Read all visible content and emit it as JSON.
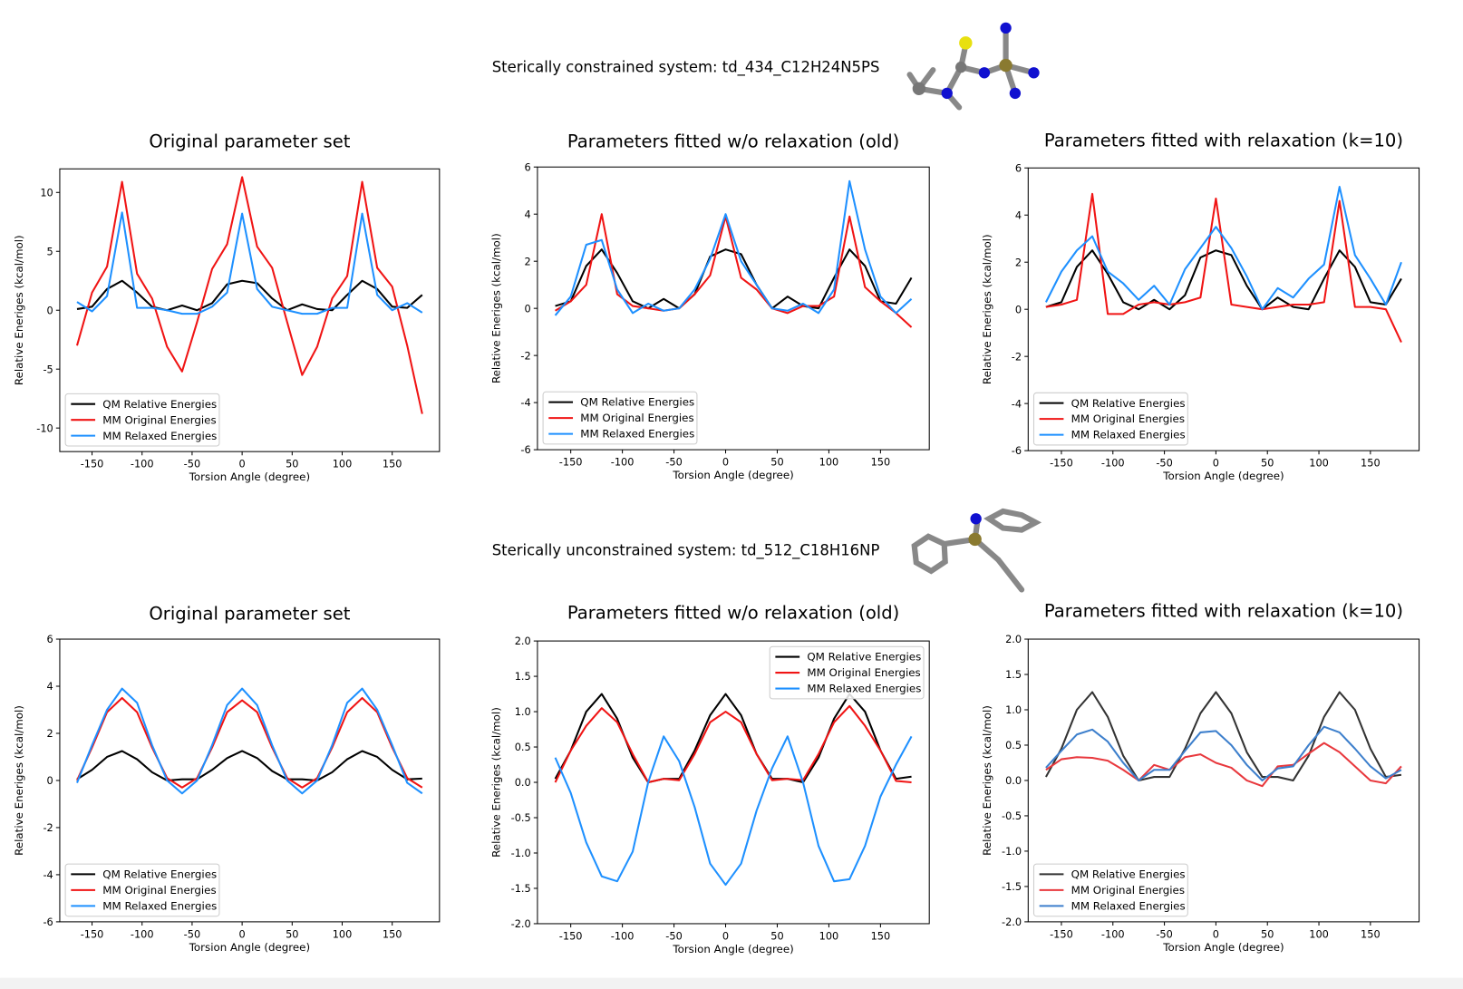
{
  "captions": [
    "Sterically constrained system: td_434_C12H24N5PS",
    "Sterically unconstrained system: td_512_C18H16NP"
  ],
  "chart_data": [
    {
      "type": "line",
      "title": "Original parameter set",
      "x_label": "Torsion Angle (degree)",
      "y_label": "Relative Eneriges (kcal/mol)",
      "x": [
        -165,
        -150,
        -135,
        -120,
        -105,
        -90,
        -75,
        -60,
        -45,
        -30,
        -15,
        0,
        15,
        30,
        45,
        60,
        75,
        90,
        105,
        120,
        135,
        150,
        165,
        180
      ],
      "xlim": [
        -182.25,
        197.25
      ],
      "xticks": [
        -150,
        -100,
        -50,
        0,
        50,
        100,
        150
      ],
      "ylim": [
        -12,
        12
      ],
      "yticks": [
        -10,
        -5,
        0,
        5,
        10
      ],
      "legend": "lower left",
      "series": [
        {
          "name": "QM Relative Energies",
          "color": "#000000",
          "values": [
            0.1,
            0.3,
            1.8,
            2.5,
            1.5,
            0.3,
            0.0,
            0.4,
            0.0,
            0.6,
            2.2,
            2.5,
            2.3,
            1.0,
            0.0,
            0.5,
            0.1,
            0.0,
            1.3,
            2.5,
            1.8,
            0.3,
            0.2,
            1.3
          ]
        },
        {
          "name": "MM Original Energies",
          "color": "#f01414",
          "values": [
            -3.0,
            1.5,
            3.7,
            10.9,
            3.1,
            1.0,
            -3.1,
            -5.2,
            -1.0,
            3.5,
            5.6,
            11.3,
            5.4,
            3.6,
            -1.0,
            -5.5,
            -3.1,
            1.0,
            2.9,
            10.9,
            3.6,
            2.0,
            -3.0,
            -8.8
          ]
        },
        {
          "name": "MM Relaxed Energies",
          "color": "#1e90ff",
          "values": [
            0.7,
            -0.1,
            1.2,
            8.3,
            0.2,
            0.2,
            0.0,
            -0.3,
            -0.3,
            0.3,
            1.5,
            8.2,
            1.8,
            0.3,
            0.0,
            -0.3,
            -0.3,
            0.2,
            0.2,
            8.2,
            1.3,
            0.0,
            0.6,
            -0.2
          ]
        }
      ]
    },
    {
      "type": "line",
      "title": "Parameters fitted w/o relaxation (old)",
      "x_label": "Torsion Angle (degree)",
      "y_label": "Relative Eneriges (kcal/mol)",
      "x": [
        -165,
        -150,
        -135,
        -120,
        -105,
        -90,
        -75,
        -60,
        -45,
        -30,
        -15,
        0,
        15,
        30,
        45,
        60,
        75,
        90,
        105,
        120,
        135,
        150,
        165,
        180
      ],
      "xlim": [
        -182.25,
        197.25
      ],
      "xticks": [
        -150,
        -100,
        -50,
        0,
        50,
        100,
        150
      ],
      "ylim": [
        -6,
        6
      ],
      "yticks": [
        -6,
        -4,
        -2,
        0,
        2,
        4,
        6
      ],
      "legend": "lower left",
      "series": [
        {
          "name": "QM Relative Energies",
          "color": "#000000",
          "values": [
            0.1,
            0.3,
            1.8,
            2.5,
            1.5,
            0.3,
            0.0,
            0.4,
            0.0,
            0.6,
            2.2,
            2.5,
            2.3,
            1.0,
            0.0,
            0.5,
            0.1,
            0.0,
            1.3,
            2.5,
            1.8,
            0.3,
            0.2,
            1.3
          ]
        },
        {
          "name": "MM Original Energies",
          "color": "#f01414",
          "values": [
            -0.1,
            0.3,
            1.0,
            4.0,
            0.6,
            0.1,
            0.0,
            -0.1,
            0.0,
            0.6,
            1.4,
            3.9,
            1.3,
            0.8,
            0.0,
            -0.2,
            0.1,
            0.1,
            0.5,
            3.9,
            0.9,
            0.3,
            -0.2,
            -0.8
          ]
        },
        {
          "name": "MM Relaxed Energies",
          "color": "#1e90ff",
          "values": [
            -0.3,
            0.5,
            2.7,
            2.9,
            0.8,
            -0.2,
            0.2,
            -0.1,
            0.0,
            0.8,
            2.1,
            4.0,
            2.0,
            1.0,
            0.0,
            -0.1,
            0.2,
            -0.2,
            0.8,
            5.4,
            2.5,
            0.5,
            -0.2,
            0.4
          ]
        }
      ]
    },
    {
      "type": "line",
      "title": "Parameters fitted with relaxation (k=10)",
      "x_label": "Torsion Angle (degree)",
      "y_label": "Relative Eneriges (kcal/mol)",
      "x": [
        -165,
        -150,
        -135,
        -120,
        -105,
        -90,
        -75,
        -60,
        -45,
        -30,
        -15,
        0,
        15,
        30,
        45,
        60,
        75,
        90,
        105,
        120,
        135,
        150,
        165,
        180
      ],
      "xlim": [
        -182.25,
        197.25
      ],
      "xticks": [
        -150,
        -100,
        -50,
        0,
        50,
        100,
        150
      ],
      "ylim": [
        -6,
        6
      ],
      "yticks": [
        -6,
        -4,
        -2,
        0,
        2,
        4,
        6
      ],
      "legend": "lower left",
      "series": [
        {
          "name": "QM Relative Energies",
          "color": "#000000",
          "values": [
            0.1,
            0.3,
            1.8,
            2.5,
            1.5,
            0.3,
            0.0,
            0.4,
            0.0,
            0.6,
            2.2,
            2.5,
            2.3,
            1.0,
            0.0,
            0.5,
            0.1,
            0.0,
            1.3,
            2.5,
            1.8,
            0.3,
            0.2,
            1.3
          ]
        },
        {
          "name": "MM Original Energies",
          "color": "#f01414",
          "values": [
            0.1,
            0.2,
            0.4,
            4.9,
            -0.2,
            -0.2,
            0.2,
            0.3,
            0.2,
            0.3,
            0.5,
            4.7,
            0.2,
            0.1,
            0.0,
            0.1,
            0.2,
            0.2,
            0.3,
            4.6,
            0.1,
            0.1,
            0.0,
            -1.4
          ]
        },
        {
          "name": "MM Relaxed Energies",
          "color": "#1e90ff",
          "values": [
            0.3,
            1.6,
            2.5,
            3.1,
            1.6,
            1.1,
            0.4,
            1.0,
            0.2,
            1.7,
            2.6,
            3.5,
            2.6,
            1.4,
            0.0,
            0.9,
            0.5,
            1.3,
            1.9,
            5.2,
            2.3,
            1.3,
            0.2,
            2.0
          ]
        }
      ]
    },
    {
      "type": "line",
      "title": "Original parameter set",
      "x_label": "Torsion Angle (degree)",
      "y_label": "Relative Eneriges (kcal/mol)",
      "x": [
        -165,
        -150,
        -135,
        -120,
        -105,
        -90,
        -75,
        -60,
        -45,
        -30,
        -15,
        0,
        15,
        30,
        45,
        60,
        75,
        90,
        105,
        120,
        135,
        150,
        165,
        180
      ],
      "xlim": [
        -182.25,
        197.25
      ],
      "xticks": [
        -150,
        -100,
        -50,
        0,
        50,
        100,
        150
      ],
      "ylim": [
        -6,
        6
      ],
      "yticks": [
        -6,
        -4,
        -2,
        0,
        2,
        4,
        6
      ],
      "legend": "lower left",
      "series": [
        {
          "name": "QM Relative Energies",
          "color": "#000000",
          "values": [
            0.05,
            0.45,
            1.0,
            1.25,
            0.9,
            0.35,
            0.0,
            0.05,
            0.05,
            0.45,
            0.95,
            1.25,
            0.95,
            0.4,
            0.05,
            0.05,
            0.0,
            0.35,
            0.9,
            1.25,
            1.0,
            0.45,
            0.05,
            0.08
          ]
        },
        {
          "name": "MM Original Energies",
          "color": "#f01414",
          "values": [
            0.0,
            1.4,
            2.9,
            3.5,
            2.9,
            1.4,
            0.1,
            -0.3,
            0.1,
            1.4,
            2.9,
            3.4,
            2.9,
            1.4,
            0.1,
            -0.3,
            0.1,
            1.4,
            2.9,
            3.5,
            2.9,
            1.4,
            0.1,
            -0.3
          ]
        },
        {
          "name": "MM Relaxed Energies",
          "color": "#1e90ff",
          "values": [
            -0.1,
            1.5,
            3.0,
            3.9,
            3.3,
            1.5,
            0.0,
            -0.55,
            0.0,
            1.5,
            3.2,
            3.9,
            3.2,
            1.5,
            0.0,
            -0.55,
            0.0,
            1.5,
            3.3,
            3.9,
            3.0,
            1.5,
            -0.1,
            -0.55
          ]
        }
      ]
    },
    {
      "type": "line",
      "title": "Parameters fitted w/o relaxation (old)",
      "x_label": "Torsion Angle (degree)",
      "y_label": "Relative Eneriges (kcal/mol)",
      "x": [
        -165,
        -150,
        -135,
        -120,
        -105,
        -90,
        -75,
        -60,
        -45,
        -30,
        -15,
        0,
        15,
        30,
        45,
        60,
        75,
        90,
        105,
        120,
        135,
        150,
        165,
        180
      ],
      "xlim": [
        -182.25,
        197.25
      ],
      "xticks": [
        -150,
        -100,
        -50,
        0,
        50,
        100,
        150
      ],
      "ylim": [
        -2,
        2
      ],
      "yticks": [
        {
          "value": -2,
          "label": "-2.0"
        },
        {
          "value": -1.5,
          "label": "-1.5"
        },
        {
          "value": -1,
          "label": "-1.0"
        },
        {
          "value": -0.5,
          "label": "-0.5"
        },
        {
          "value": 0,
          "label": "0.0"
        },
        {
          "value": 0.5,
          "label": "0.5"
        },
        {
          "value": 1,
          "label": "1.0"
        },
        {
          "value": 1.5,
          "label": "1.5"
        },
        {
          "value": 2,
          "label": "2.0"
        }
      ],
      "legend": "upper right",
      "series": [
        {
          "name": "QM Relative Energies",
          "color": "#000000",
          "values": [
            0.05,
            0.45,
            1.0,
            1.25,
            0.9,
            0.35,
            0.0,
            0.05,
            0.05,
            0.45,
            0.95,
            1.25,
            0.95,
            0.4,
            0.05,
            0.05,
            0.0,
            0.35,
            0.9,
            1.25,
            1.0,
            0.45,
            0.05,
            0.08
          ]
        },
        {
          "name": "MM Original Energies",
          "color": "#f01414",
          "values": [
            0.0,
            0.45,
            0.8,
            1.05,
            0.85,
            0.4,
            0.0,
            0.05,
            0.03,
            0.4,
            0.85,
            1.0,
            0.85,
            0.4,
            0.03,
            0.05,
            0.03,
            0.4,
            0.85,
            1.08,
            0.8,
            0.45,
            0.02,
            0.0
          ]
        },
        {
          "name": "MM Relaxed Energies",
          "color": "#1e90ff",
          "values": [
            0.35,
            -0.15,
            -0.85,
            -1.33,
            -1.4,
            -0.98,
            0.0,
            0.65,
            0.3,
            -0.35,
            -1.15,
            -1.45,
            -1.15,
            -0.4,
            0.2,
            0.65,
            0.0,
            -0.9,
            -1.4,
            -1.37,
            -0.9,
            -0.2,
            0.25,
            0.65
          ]
        }
      ]
    },
    {
      "type": "line",
      "title": "Parameters fitted with relaxation (k=10)",
      "x_label": "Torsion Angle (degree)",
      "y_label": "Relative Eneriges (kcal/mol)",
      "x": [
        -165,
        -150,
        -135,
        -120,
        -105,
        -90,
        -75,
        -60,
        -45,
        -30,
        -15,
        0,
        15,
        30,
        45,
        60,
        75,
        90,
        105,
        120,
        135,
        150,
        165,
        180
      ],
      "xlim": [
        -182.25,
        197.25
      ],
      "xticks": [
        -150,
        -100,
        -50,
        0,
        50,
        100,
        150
      ],
      "ylim": [
        -2,
        2
      ],
      "yticks": [
        {
          "value": -2,
          "label": "-2.0"
        },
        {
          "value": -1.5,
          "label": "-1.5"
        },
        {
          "value": -1,
          "label": "-1.0"
        },
        {
          "value": -0.5,
          "label": "-0.5"
        },
        {
          "value": 0,
          "label": "0.0"
        },
        {
          "value": 0.5,
          "label": "0.5"
        },
        {
          "value": 1,
          "label": "1.0"
        },
        {
          "value": 1.5,
          "label": "1.5"
        },
        {
          "value": 2,
          "label": "2.0"
        }
      ],
      "legend": "lower left",
      "series": [
        {
          "name": "QM Relative Energies",
          "color": "#333333",
          "values": [
            0.05,
            0.45,
            1.0,
            1.25,
            0.9,
            0.35,
            0.0,
            0.05,
            0.05,
            0.45,
            0.95,
            1.25,
            0.95,
            0.4,
            0.05,
            0.05,
            0.0,
            0.35,
            0.9,
            1.25,
            1.0,
            0.45,
            0.05,
            0.08
          ]
        },
        {
          "name": "MM Original Energies",
          "color": "#e8383d",
          "values": [
            0.15,
            0.3,
            0.33,
            0.32,
            0.28,
            0.15,
            0.0,
            0.22,
            0.15,
            0.33,
            0.37,
            0.25,
            0.18,
            0.0,
            -0.08,
            0.2,
            0.22,
            0.38,
            0.53,
            0.4,
            0.2,
            0.0,
            -0.04,
            0.2
          ]
        },
        {
          "name": "MM Relaxed Energies",
          "color": "#3d7fcc",
          "values": [
            0.18,
            0.42,
            0.65,
            0.72,
            0.55,
            0.25,
            0.0,
            0.15,
            0.15,
            0.42,
            0.68,
            0.7,
            0.5,
            0.22,
            0.0,
            0.17,
            0.2,
            0.5,
            0.76,
            0.68,
            0.45,
            0.2,
            0.03,
            0.15
          ]
        }
      ]
    }
  ]
}
